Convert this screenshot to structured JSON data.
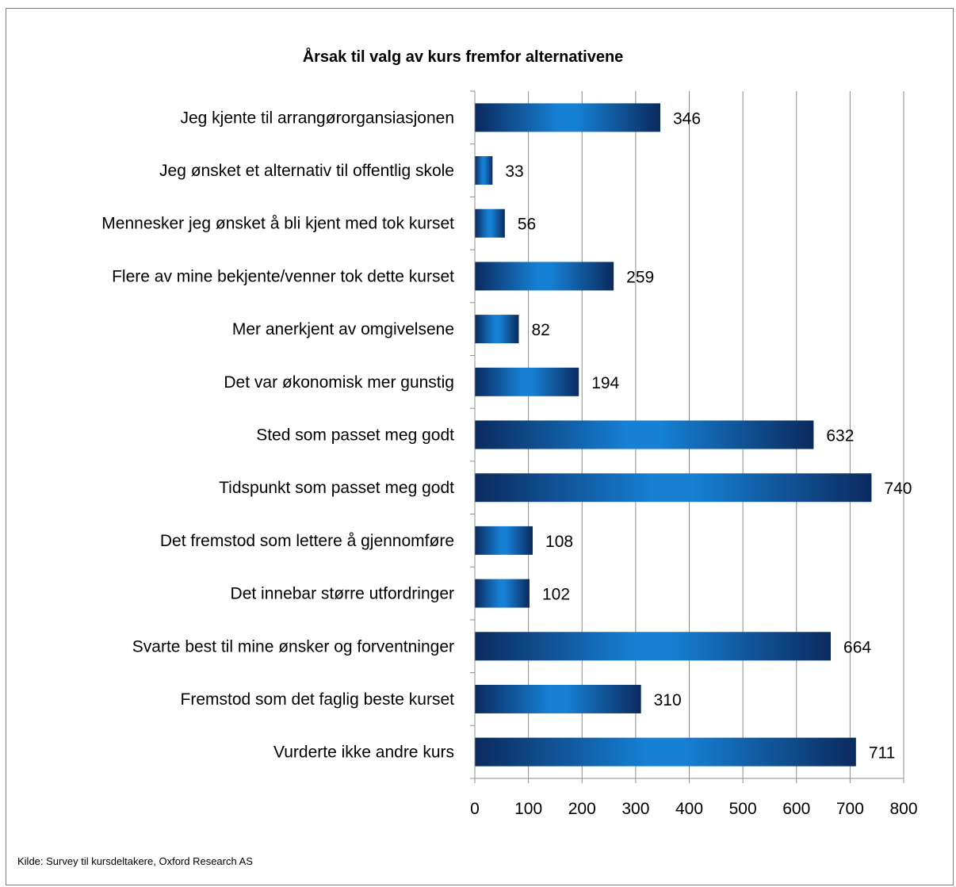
{
  "chart_data": {
    "type": "bar",
    "orientation": "horizontal",
    "title": "Årsak til valg av kurs fremfor alternativene",
    "categories": [
      "Jeg kjente til arrangørorgansiasjonen",
      "Jeg ønsket et alternativ til offentlig skole",
      "Mennesker jeg ønsket å bli kjent med tok kurset",
      "Flere av mine bekjente/venner tok dette kurset",
      "Mer anerkjent av omgivelsene",
      "Det var økonomisk mer gunstig",
      "Sted som passet meg godt",
      "Tidspunkt som passet meg godt",
      "Det fremstod som lettere å gjennomføre",
      "Det innebar større utfordringer",
      "Svarte best til mine ønsker og forventninger",
      "Fremstod som det faglig beste kurset",
      "Vurderte ikke andre kurs"
    ],
    "values": [
      346,
      33,
      56,
      259,
      82,
      194,
      632,
      740,
      108,
      102,
      664,
      310,
      711
    ],
    "xlim": [
      0,
      800
    ],
    "xticks": [
      0,
      100,
      200,
      300,
      400,
      500,
      600,
      700,
      800
    ],
    "xlabel": "",
    "ylabel": "",
    "grid": "vertical",
    "legend": "none",
    "data_labels": true,
    "colors": {
      "bar_dark": "#0b2a5e",
      "bar_light": "#1680d4",
      "grid": "#8c8c8c",
      "axis": "#8c8c8c"
    }
  },
  "source_note": "Kilde: Survey til kursdeltakere, Oxford Research AS"
}
